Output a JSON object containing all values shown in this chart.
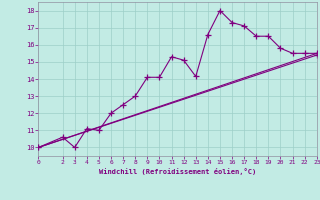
{
  "xlabel": "Windchill (Refroidissement éolien,°C)",
  "bg_color": "#c2ebe4",
  "line_color": "#800080",
  "grid_color": "#9dcfc8",
  "spine_color": "#9090a0",
  "xlim": [
    0,
    23
  ],
  "ylim": [
    9.5,
    18.5
  ],
  "xticks": [
    0,
    2,
    3,
    4,
    5,
    6,
    7,
    8,
    9,
    10,
    11,
    12,
    13,
    14,
    15,
    16,
    17,
    18,
    19,
    20,
    21,
    22,
    23
  ],
  "yticks": [
    10,
    11,
    12,
    13,
    14,
    15,
    16,
    17,
    18
  ],
  "line1_x": [
    0,
    2,
    3,
    4,
    5,
    6,
    7,
    8,
    9,
    10,
    11,
    12,
    13,
    14,
    15,
    16,
    17,
    18,
    19,
    20,
    21,
    22,
    23
  ],
  "line1_y": [
    10,
    10.6,
    10.0,
    11.1,
    11.0,
    12.0,
    12.5,
    13.0,
    14.1,
    14.1,
    15.3,
    15.1,
    14.15,
    16.6,
    18.0,
    17.3,
    17.1,
    16.5,
    16.5,
    15.8,
    15.5,
    15.5,
    15.5
  ],
  "line2_x": [
    0,
    23
  ],
  "line2_y": [
    10,
    15.5
  ],
  "line3_x": [
    0,
    23
  ],
  "line3_y": [
    10,
    15.4
  ]
}
